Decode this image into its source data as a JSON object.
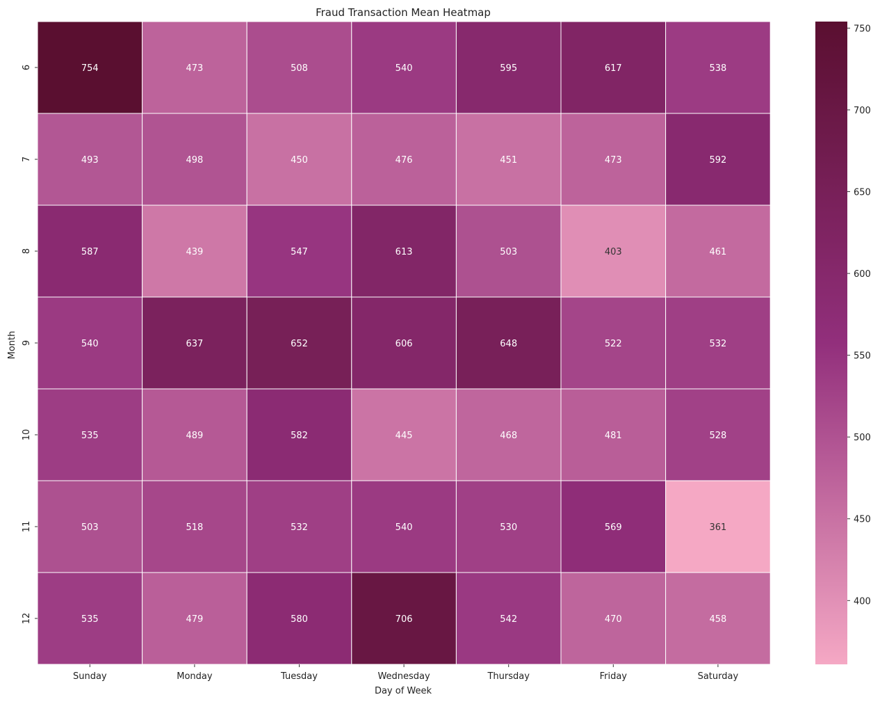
{
  "chart_data": {
    "type": "heatmap",
    "title": "Fraud Transaction Mean Heatmap",
    "xlabel": "Day of Week",
    "ylabel": "Month",
    "x_categories": [
      "Sunday",
      "Monday",
      "Tuesday",
      "Wednesday",
      "Thursday",
      "Friday",
      "Saturday"
    ],
    "y_categories": [
      "6",
      "7",
      "8",
      "9",
      "10",
      "11",
      "12"
    ],
    "values": [
      [
        754,
        473,
        508,
        540,
        595,
        617,
        538
      ],
      [
        493,
        498,
        450,
        476,
        451,
        473,
        592
      ],
      [
        587,
        439,
        547,
        613,
        503,
        403,
        461
      ],
      [
        540,
        637,
        652,
        606,
        648,
        522,
        532
      ],
      [
        535,
        489,
        582,
        445,
        468,
        481,
        528
      ],
      [
        503,
        518,
        532,
        540,
        530,
        569,
        361
      ],
      [
        535,
        479,
        580,
        706,
        542,
        470,
        458
      ]
    ],
    "colorbar": {
      "min": 361,
      "max": 754,
      "ticks": [
        400,
        450,
        500,
        550,
        600,
        650,
        700,
        750
      ],
      "colors": {
        "low": "#f5a8c4",
        "mid": "#922f7c",
        "high": "#5a0f30"
      }
    },
    "cell_border_color": "#ffffff"
  }
}
